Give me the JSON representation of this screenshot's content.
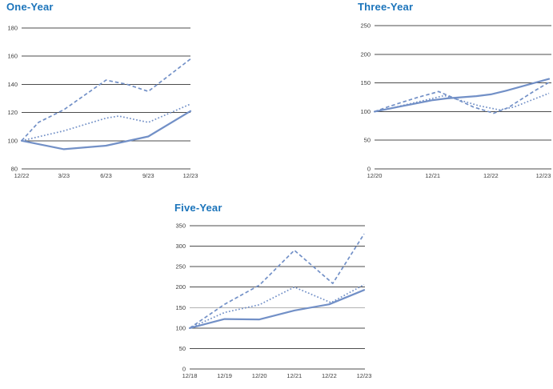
{
  "page": {
    "background_color": "#FFFFFF"
  },
  "colors": {
    "title_text": "#1B74BB",
    "series_line": "#7290C7",
    "gridline": "#4D4D4D",
    "gridline_muted": "#B3B3B3",
    "axis_label_text": "#3D3D3D"
  },
  "chart_data": [
    {
      "id": "one-year",
      "type": "line",
      "title": "One-Year",
      "x_tick_labels": [
        "12/22",
        "3/23",
        "6/23",
        "9/23",
        "12/23"
      ],
      "y_tick_labels": [
        "80",
        "100",
        "120",
        "140",
        "160",
        "180"
      ],
      "ylim": [
        80,
        180
      ],
      "y_step": 20,
      "grid": true,
      "legend": "none",
      "series": [
        {
          "name": "solid-line",
          "style": "solid",
          "x": [
            0,
            1,
            2,
            3,
            4
          ],
          "values": [
            100,
            94,
            96.5,
            103,
            121
          ]
        },
        {
          "name": "dashed-line",
          "style": "dashed",
          "x": [
            0,
            0.4,
            1,
            2,
            2.5,
            3,
            4
          ],
          "values": [
            100,
            113,
            122,
            143,
            140,
            135,
            158
          ]
        },
        {
          "name": "dotted-line",
          "style": "dotted",
          "x": [
            0,
            1,
            2,
            2.3,
            3,
            4
          ],
          "values": [
            100,
            107,
            116,
            117.5,
            113,
            126
          ]
        }
      ]
    },
    {
      "id": "three-year",
      "type": "line",
      "title": "Three-Year",
      "x_tick_labels": [
        "12/20",
        "12/21",
        "12/22",
        "12/23"
      ],
      "y_tick_labels": [
        "0",
        "50",
        "100",
        "150",
        "200",
        "250"
      ],
      "ylim": [
        0,
        250
      ],
      "y_step": 50,
      "grid": true,
      "legend": "none",
      "series": [
        {
          "name": "solid-line",
          "style": "solid",
          "x": [
            0,
            0.25,
            0.5,
            0.75,
            1,
            1.25,
            1.5,
            1.75,
            2,
            2.25,
            2.5,
            2.75,
            3
          ],
          "values": [
            100,
            105,
            110,
            115,
            120,
            123,
            125,
            127,
            130,
            136,
            143,
            150,
            157
          ]
        },
        {
          "name": "dashed-line",
          "style": "dashed",
          "x": [
            0,
            0.25,
            0.5,
            0.75,
            1,
            1.1,
            1.4,
            1.7,
            2.05,
            2.3,
            2.5,
            2.75,
            3
          ],
          "values": [
            100,
            109,
            117,
            125,
            132,
            135,
            122,
            108,
            97,
            107,
            120,
            136,
            151
          ]
        },
        {
          "name": "dotted-line",
          "style": "dotted",
          "x": [
            0,
            0.25,
            0.5,
            0.75,
            1,
            1.2,
            1.5,
            1.8,
            2.15,
            2.4,
            2.6,
            2.8,
            3
          ],
          "values": [
            100,
            105,
            111,
            117,
            123,
            128,
            119,
            110,
            103,
            108,
            116,
            124,
            132
          ]
        }
      ]
    },
    {
      "id": "five-year",
      "type": "line",
      "title": "Five-Year",
      "x_tick_labels": [
        "12/18",
        "12/19",
        "12/20",
        "12/21",
        "12/22",
        "12/23"
      ],
      "y_tick_labels": [
        "0",
        "50",
        "100",
        "150",
        "200",
        "250",
        "300",
        "350"
      ],
      "ylim": [
        0,
        350
      ],
      "y_step": 50,
      "grid": true,
      "muted_gridlines": [
        150
      ],
      "legend": "none",
      "series": [
        {
          "name": "solid-line",
          "style": "solid",
          "x": [
            0,
            1,
            2,
            3,
            4,
            5
          ],
          "values": [
            100,
            122,
            121,
            143,
            158,
            193
          ]
        },
        {
          "name": "dashed-line",
          "style": "dashed",
          "x": [
            0,
            1,
            2,
            3,
            4.1,
            5
          ],
          "values": [
            100,
            158,
            205,
            290,
            209,
            330
          ]
        },
        {
          "name": "dotted-line",
          "style": "dotted",
          "x": [
            0,
            1,
            2,
            3,
            4.05,
            5
          ],
          "values": [
            100,
            138,
            157,
            200,
            162,
            206
          ]
        }
      ]
    }
  ]
}
